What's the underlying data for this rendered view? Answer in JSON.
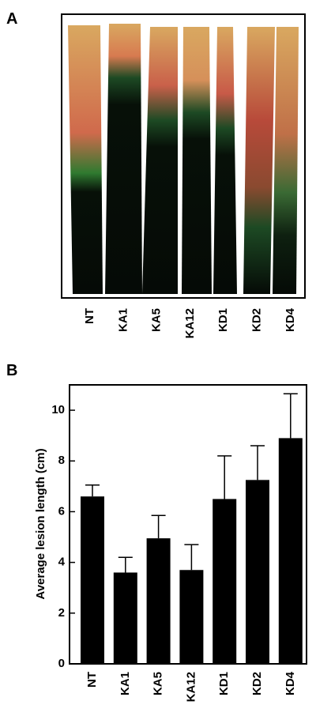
{
  "figure": {
    "panel_a": {
      "label": "A",
      "categories": [
        "NT",
        "KA1",
        "KA5",
        "KA12",
        "KD1",
        "KD2",
        "KD4"
      ]
    },
    "panel_b_label": "B"
  },
  "chart_data": {
    "type": "bar",
    "y_label": "Average lesion length (cm)",
    "categories": [
      "NT",
      "KA1",
      "KA5",
      "KA12",
      "KD1",
      "KD2",
      "KD4"
    ],
    "values": [
      6.6,
      3.6,
      4.95,
      3.7,
      6.5,
      7.25,
      8.9
    ],
    "errors": [
      0.45,
      0.6,
      0.9,
      1.0,
      1.7,
      1.35,
      1.75
    ],
    "color": "#000000",
    "ylim": [
      0,
      11
    ],
    "yticks": [
      0,
      2,
      4,
      6,
      8,
      10
    ]
  }
}
